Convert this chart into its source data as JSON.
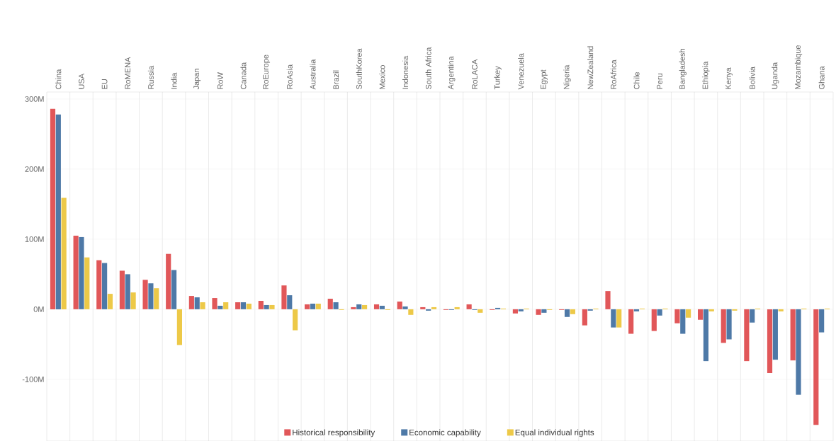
{
  "chart_data": {
    "type": "bar",
    "categories": [
      "China",
      "USA",
      "EU",
      "RoMENA",
      "Russia",
      "India",
      "Japan",
      "RoW",
      "Canada",
      "RoEurope",
      "RoAsia",
      "Australia",
      "Brazil",
      "SouthKorea",
      "Mexico",
      "Indonesia",
      "South Africa",
      "Argentina",
      "RoLACA",
      "Turkey",
      "Venezuela",
      "Egypt",
      "Nigeria",
      "NewZealand",
      "RoAfrica",
      "Chile",
      "Peru",
      "Bangladesh",
      "Ethiopia",
      "Kenya",
      "Bolivia",
      "Uganda",
      "Mozambique",
      "Ghana"
    ],
    "series": [
      {
        "name": "Historical responsibility",
        "color": "#e15759",
        "values": [
          286,
          105,
          70,
          55,
          42,
          79,
          19,
          16,
          10,
          12,
          34,
          7,
          15,
          3,
          7,
          11,
          3,
          -1,
          7,
          -1,
          -6,
          -8,
          -1,
          -23,
          26,
          -35,
          -31,
          -20,
          -15,
          -48,
          -74,
          -91,
          -73,
          -165
        ]
      },
      {
        "name": "Economic capability",
        "color": "#4e79a7",
        "values": [
          278,
          103,
          66,
          50,
          37,
          56,
          17,
          5,
          10,
          6,
          20,
          8,
          10,
          7,
          5,
          4,
          -2,
          -1,
          -1,
          2,
          -3,
          -5,
          -11,
          -2,
          -26,
          -3,
          -9,
          -35,
          -74,
          -43,
          -19,
          -72,
          -122,
          -33
        ]
      },
      {
        "name": "Equal individual rights",
        "color": "#edc948",
        "values": [
          159,
          74,
          22,
          24,
          30,
          -51,
          10,
          10,
          8,
          6,
          -30,
          8,
          -1,
          6,
          -1,
          -8,
          3,
          3,
          -5,
          1,
          1,
          -1,
          -7,
          1,
          -26,
          1,
          1,
          -12,
          -3,
          -2,
          1,
          -3,
          1,
          1
        ]
      }
    ],
    "ylim": [
      -188,
      310
    ],
    "yticks": [
      {
        "value": -100,
        "label": "-100M"
      },
      {
        "value": 0,
        "label": "0M"
      },
      {
        "value": 100,
        "label": "100M"
      },
      {
        "value": 200,
        "label": "200M"
      },
      {
        "value": 300,
        "label": "300M"
      }
    ],
    "grid": true,
    "legend": "bottom"
  }
}
